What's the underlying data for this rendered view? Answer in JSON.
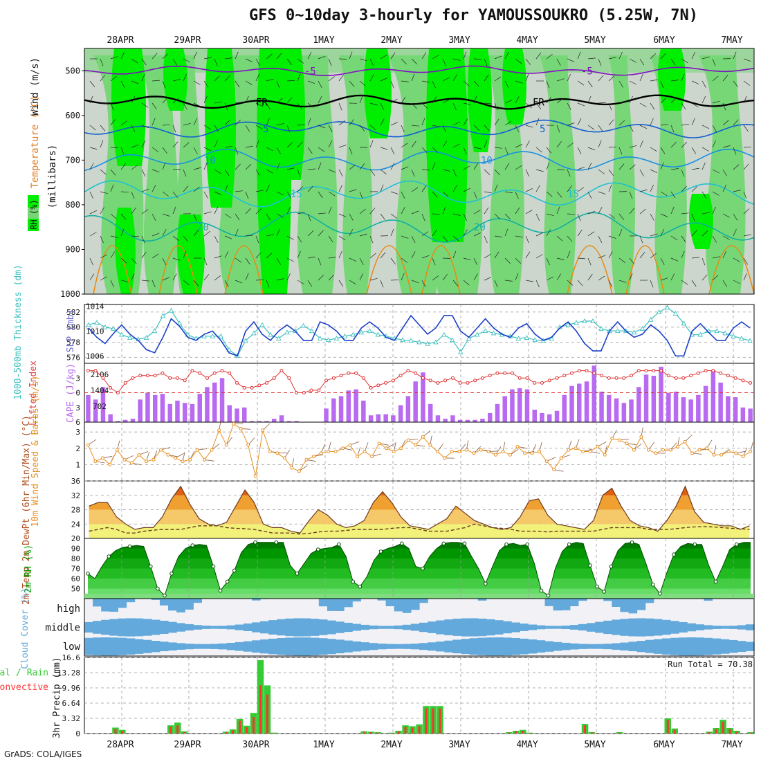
{
  "title": "GFS 0~10day 3-hourly for YAMOUSSOUKRO (5.25W, 7N)",
  "credit": "GrADS: COLA/IGES",
  "colors": {
    "rh_bright": "#00ee00",
    "rh_mid": "#77d777",
    "rh_gray": "#cdd6cd",
    "slp": "#1a3fc9",
    "thickness": "#3cbfbf",
    "lifted_index": "#e03030",
    "cape": "#b86af0",
    "wind10m": "#e89020",
    "rh2m": "#00a000",
    "cloud": "#63a9dc",
    "rain_total": "#33cc33",
    "rain_conv": "#ff3333"
  },
  "chart_data": [
    {
      "type": "heatmap",
      "panel": "upper-air",
      "ylabel": "(millibars)",
      "labels": [
        "RH (%)",
        "Temperature (°C)",
        "Wind (m/s)"
      ],
      "x": [
        "28APR",
        "29APR",
        "30APR",
        "1MAY",
        "2MAY",
        "3MAY",
        "4MAY",
        "5MAY",
        "6MAY",
        "7MAY"
      ],
      "y_ticks": [
        500,
        600,
        700,
        800,
        900,
        1000
      ],
      "ylim": [
        1000,
        450
      ],
      "isotherms": [
        {
          "label": "-5",
          "pressure": 500
        },
        {
          "label": "FR",
          "pressure": 570
        },
        {
          "label": "5",
          "pressure": 630
        },
        {
          "label": "10",
          "pressure": 700
        },
        {
          "label": "15",
          "pressure": 775
        },
        {
          "label": "20",
          "pressure": 850
        }
      ]
    },
    {
      "type": "line",
      "panel": "slp-thickness",
      "ylabel_left": "1000-500mb Thickness (dm)",
      "ylabel_right": "SLP (mb)",
      "y_left_ticks": [
        576,
        578,
        580,
        582
      ],
      "y_right_ticks": [
        1006,
        1010,
        1014
      ],
      "ylim_left": [
        575.2,
        583
      ],
      "ylim_right": [
        1004.8,
        1014.3
      ],
      "series": [
        {
          "name": "SLP (mb)",
          "values": [
            1010.5,
            1009,
            1008,
            1009.6,
            1011,
            1009.5,
            1008.5,
            1007,
            1006.5,
            1009,
            1012,
            1010.8,
            1009,
            1008.5,
            1009.5,
            1010,
            1008.5,
            1006.5,
            1006,
            1010,
            1011.5,
            1009.5,
            1008.5,
            1010,
            1011,
            1010,
            1008.5,
            1008.5,
            1011.5,
            1011,
            1010,
            1008.5,
            1008.5,
            1010.5,
            1011.5,
            1010.5,
            1009,
            1008.5,
            1010.5,
            1012.5,
            1011,
            1009.5,
            1010.5,
            1012.5,
            1012.5,
            1010,
            1009,
            1010.5,
            1012,
            1010.5,
            1009.5,
            1009,
            1010.5,
            1011.2,
            1009.5,
            1008.5,
            1009,
            1010.5,
            1011.5,
            1010,
            1008,
            1006.8,
            1006.8,
            1010,
            1011.5,
            1010,
            1009,
            1009.5,
            1011,
            1010,
            1008.5,
            1006,
            1006,
            1010,
            1011.2,
            1009.8,
            1008.5,
            1008.5,
            1010.5,
            1011.5,
            1010.5
          ]
        },
        {
          "name": "1000-500mb Thickness (dm)",
          "values": [
            580.3,
            580.6,
            580,
            579.8,
            579,
            578.6,
            578.4,
            578.6,
            579.5,
            581.5,
            582.2,
            580.5,
            579,
            578.5,
            578.8,
            578.8,
            578.8,
            577,
            576.2,
            578.2,
            579.2,
            580.3,
            579,
            578.5,
            579.3,
            579.5,
            580.2,
            579.5,
            578.5,
            578.3,
            578.5,
            578.8,
            579,
            579.3,
            579.5,
            579,
            578.8,
            578.5,
            578.3,
            578.2,
            578,
            577.8,
            578,
            579,
            578.3,
            576.7,
            578.5,
            579,
            579.5,
            579.2,
            579,
            578.8,
            578.5,
            578.6,
            578.3,
            578.2,
            578.5,
            580,
            580.3,
            580.6,
            580.8,
            580.8,
            579.8,
            579.5,
            579.5,
            579.5,
            579.3,
            579.8,
            581,
            582,
            582.6,
            581.8,
            580.5,
            579,
            579,
            579.5,
            579.5,
            579.2,
            578.8,
            578.5,
            578.2
          ]
        }
      ]
    },
    {
      "type": "bar",
      "panel": "lifted-index-cape",
      "ylabel_left": "Lifted Index",
      "ylabel_right": "CAPE (J/kg)",
      "y_left_ticks": [
        -3,
        0,
        3,
        6
      ],
      "y_right_ticks": [
        702,
        1404,
        2106
      ],
      "ylim_right": [
        0,
        2600
      ],
      "series": [
        {
          "name": "CAPE (J/kg)",
          "values": [
            1200,
            1000,
            1550,
            350,
            50,
            100,
            150,
            1000,
            1300,
            1200,
            1250,
            800,
            950,
            850,
            800,
            1250,
            1550,
            1750,
            1950,
            750,
            600,
            650,
            50,
            50,
            50,
            150,
            300,
            50,
            50,
            0,
            0,
            0,
            600,
            1050,
            1150,
            1400,
            1450,
            950,
            300,
            350,
            350,
            300,
            750,
            1150,
            1800,
            2200,
            800,
            300,
            150,
            300,
            100,
            100,
            100,
            150,
            400,
            800,
            1150,
            1450,
            1500,
            1450,
            550,
            400,
            350,
            500,
            1200,
            1600,
            1700,
            1800,
            2500,
            1350,
            1200,
            1050,
            850,
            1000,
            1550,
            2100,
            2050,
            2450,
            1300,
            1350,
            1100,
            1000,
            1200,
            1600,
            2300,
            1750,
            1150,
            1100,
            650,
            600
          ]
        },
        {
          "name": "Lifted Index",
          "values": [
            -4.5,
            -4.5,
            -3,
            -1,
            0,
            -2,
            -3,
            -3.5,
            -3.5,
            -3.5,
            -4,
            -3,
            -3,
            -2.5,
            -4.5,
            -4,
            -3,
            -4,
            -4.5,
            -4,
            -2,
            -1,
            -1,
            -1.5,
            -2,
            -3,
            -4.5,
            -3,
            0,
            0,
            -0.5,
            -0.5,
            -2.5,
            -3,
            -3.5,
            -4,
            -4,
            -3,
            -1,
            -1.5,
            -2,
            -2.5,
            -3.5,
            -4.5,
            -4,
            -3,
            -2.5,
            -2,
            -2.5,
            -3,
            -2,
            -2,
            -2.5,
            -3,
            -3.5,
            -4,
            -4,
            -4,
            -3,
            -3,
            -2,
            -2,
            -2.5,
            -3,
            -3.5,
            -4,
            -4.5,
            -4.5,
            -4,
            -3.5,
            -3,
            -3,
            -3,
            -3.5,
            -4.5,
            -4.5,
            -4.5,
            -4.5,
            -3.5,
            -3,
            -3,
            -3.5,
            -4,
            -4.5,
            -4.5,
            -4,
            -3.5,
            -3,
            -2.5,
            -2
          ]
        }
      ]
    },
    {
      "type": "line",
      "panel": "10m-wind",
      "ylabel": "10m Wind Speed & Barbs (m/s)",
      "y_ticks": [
        1,
        2,
        3
      ],
      "ylim": [
        0,
        3.6
      ],
      "series": [
        {
          "name": "10m Wind Speed",
          "values": [
            2.2,
            1.2,
            1.4,
            1,
            1.9,
            1.3,
            1.1,
            1.6,
            1.2,
            1.3,
            1.9,
            1.6,
            1.4,
            1.2,
            1.3,
            1.9,
            1.3,
            1.9,
            3.1,
            2.2,
            3.5,
            3.2,
            2.2,
            0.3,
            3.1,
            1.8,
            1.7,
            1.4,
            0.8,
            0.6,
            1.3,
            1.5,
            1.7,
            1.8,
            1.8,
            2,
            2.2,
            1.5,
            1.8,
            1.5,
            2.3,
            2,
            1.8,
            2,
            2.5,
            2.2,
            2.7,
            2.2,
            1.8,
            1.4,
            1.8,
            1.8,
            1.9,
            1.7,
            1.9,
            1.8,
            1.6,
            1.8,
            1.6,
            2.1,
            1.7,
            1.7,
            1.8,
            1.2,
            0.7,
            1.4,
            1.9,
            2,
            1.8,
            1.8,
            2.1,
            1.6,
            2.6,
            2.5,
            2.3,
            1.9,
            2.7,
            1.9,
            1.7,
            1.9,
            1.9,
            2.1,
            2.4,
            1.7,
            1.9,
            2,
            1.6,
            1.6,
            1.8,
            1.7,
            1.5,
            1.8
          ]
        }
      ]
    },
    {
      "type": "area",
      "panel": "2m-temp",
      "ylabel": "2m Temp 2m DewPt (6hr Min/Max) (°C)",
      "y_ticks": [
        20,
        24,
        28,
        32,
        36
      ],
      "ylim": [
        20,
        36
      ],
      "series": [
        {
          "name": "2m Temp",
          "values": [
            29,
            30,
            30,
            26,
            24,
            22.5,
            23,
            23,
            26,
            31,
            34.5,
            29.5,
            25.5,
            24,
            23.5,
            24.5,
            29,
            33.5,
            30,
            24,
            23,
            23,
            22,
            21.5,
            25,
            28,
            26.5,
            24,
            23,
            23.5,
            25,
            30,
            33,
            30,
            26,
            23.5,
            23,
            22.5,
            24,
            25.5,
            29,
            27,
            25,
            24,
            23,
            22.5,
            23,
            26,
            30.5,
            31,
            26.5,
            24,
            23.5,
            23,
            22.5,
            25,
            32,
            34,
            29,
            25,
            23.5,
            23,
            22,
            25,
            29,
            34.5,
            27.5,
            24.5,
            24,
            23.5,
            23.5,
            22.5,
            23.5
          ]
        },
        {
          "name": "2m DewPt",
          "values": [
            22,
            22.5,
            23,
            22.5,
            21.5,
            21.5,
            22,
            22.3,
            22.5,
            22.5,
            22.5,
            23,
            23.5,
            23.5,
            23.5,
            23,
            22.8,
            22.7,
            22.5,
            22,
            21.5,
            21.5,
            21.5,
            21.2,
            21.4,
            21.8,
            22,
            22,
            22.2,
            22.5,
            22.5,
            22.5,
            22.5,
            22.8,
            23,
            23,
            22.5,
            22,
            22,
            22,
            22.5,
            23,
            24,
            23.5,
            23,
            22.8,
            22.5,
            22,
            22,
            22,
            21.8,
            22,
            22,
            22,
            22,
            22,
            22.5,
            23,
            23,
            23,
            23,
            22.5,
            22.5,
            22.5,
            22.7,
            23,
            23.2,
            23.3,
            23.2,
            23,
            22.8,
            22.7,
            22.5
          ]
        }
      ]
    },
    {
      "type": "area",
      "panel": "2m-rh",
      "ylabel": "2m RH (%)",
      "y_ticks": [
        50,
        60,
        70,
        80,
        90
      ],
      "ylim": [
        40,
        100
      ],
      "series": [
        {
          "name": "2m RH",
          "values": [
            65,
            60,
            72,
            82,
            88,
            91,
            92,
            93,
            92,
            72,
            50,
            43,
            65,
            82,
            90,
            93,
            94,
            93,
            72,
            48,
            57,
            68,
            86,
            94,
            96,
            96,
            96,
            96,
            96,
            73,
            65,
            75,
            85,
            89,
            90,
            91,
            94,
            82,
            57,
            52,
            62,
            78,
            87,
            90,
            92,
            95,
            90,
            72,
            70,
            82,
            90,
            95,
            96,
            96,
            95,
            82,
            70,
            55,
            72,
            88,
            94,
            95,
            93,
            94,
            75,
            48,
            43,
            70,
            87,
            94,
            96,
            95,
            73,
            52,
            47,
            72,
            88,
            95,
            96,
            94,
            75,
            54,
            45,
            66,
            84,
            92,
            95,
            94,
            94,
            73,
            57,
            72,
            89,
            94,
            96,
            96
          ]
        }
      ]
    },
    {
      "type": "bar",
      "panel": "cloud-cover",
      "ylabel": "Cloud Cover (%)",
      "categories": [
        "high",
        "middle",
        "low"
      ]
    },
    {
      "type": "bar",
      "panel": "precip",
      "ylabel": "3hr Precip (mm)",
      "legend": [
        "Total / Rain",
        "Convective"
      ],
      "annotation": "Run Total = 70.38",
      "y_ticks": [
        0,
        3.32,
        6.64,
        9.96,
        13.28,
        16.6
      ],
      "ylim": [
        0,
        16.6
      ],
      "series": [
        {
          "name": "Total / Rain",
          "values": [
            0,
            0,
            0,
            0,
            1.3,
            0.8,
            0,
            0,
            0,
            0,
            0,
            0,
            1.8,
            2.4,
            0.5,
            0,
            0,
            0,
            0,
            0,
            0.4,
            0.9,
            3.2,
            1.7,
            4.5,
            16,
            10.5,
            0.2,
            0,
            0,
            0,
            0,
            0,
            0,
            0,
            0,
            0,
            0,
            0,
            0,
            0.5,
            0.4,
            0.3,
            0,
            0.2,
            0.6,
            1.8,
            1.6,
            2,
            6,
            6,
            6,
            0,
            0,
            0,
            0,
            0,
            0,
            0,
            0,
            0,
            0.3,
            0.6,
            0.8,
            0.2,
            0,
            0,
            0,
            0,
            0,
            0,
            0,
            2.1,
            0.3,
            0,
            0,
            0,
            0.3,
            0,
            0,
            0,
            0,
            0,
            0,
            3.3,
            1.1,
            0,
            0,
            0,
            0,
            0.4,
            1.2,
            3,
            1.2,
            0.6,
            0,
            0.3
          ]
        },
        {
          "name": "Convective",
          "values": [
            0,
            0,
            0,
            0,
            1,
            0.6,
            0,
            0,
            0,
            0,
            0,
            0,
            1.5,
            1.8,
            0.3,
            0,
            0,
            0,
            0,
            0,
            0.3,
            0.7,
            2.8,
            1.4,
            3.6,
            10.5,
            8.5,
            0.1,
            0,
            0,
            0,
            0,
            0,
            0,
            0,
            0,
            0,
            0,
            0,
            0,
            0.4,
            0.3,
            0.2,
            0,
            0.1,
            0.5,
            1.5,
            1.3,
            1.6,
            5.5,
            5.5,
            5.5,
            0,
            0,
            0,
            0,
            0,
            0,
            0,
            0,
            0,
            0.2,
            0.5,
            0.6,
            0.1,
            0,
            0,
            0,
            0,
            0,
            0,
            0,
            1.8,
            0.2,
            0,
            0,
            0,
            0.2,
            0,
            0,
            0,
            0,
            0,
            0,
            3,
            0.8,
            0,
            0,
            0,
            0,
            0.3,
            1,
            2.6,
            1,
            0.4,
            0,
            0.2
          ]
        }
      ]
    }
  ]
}
